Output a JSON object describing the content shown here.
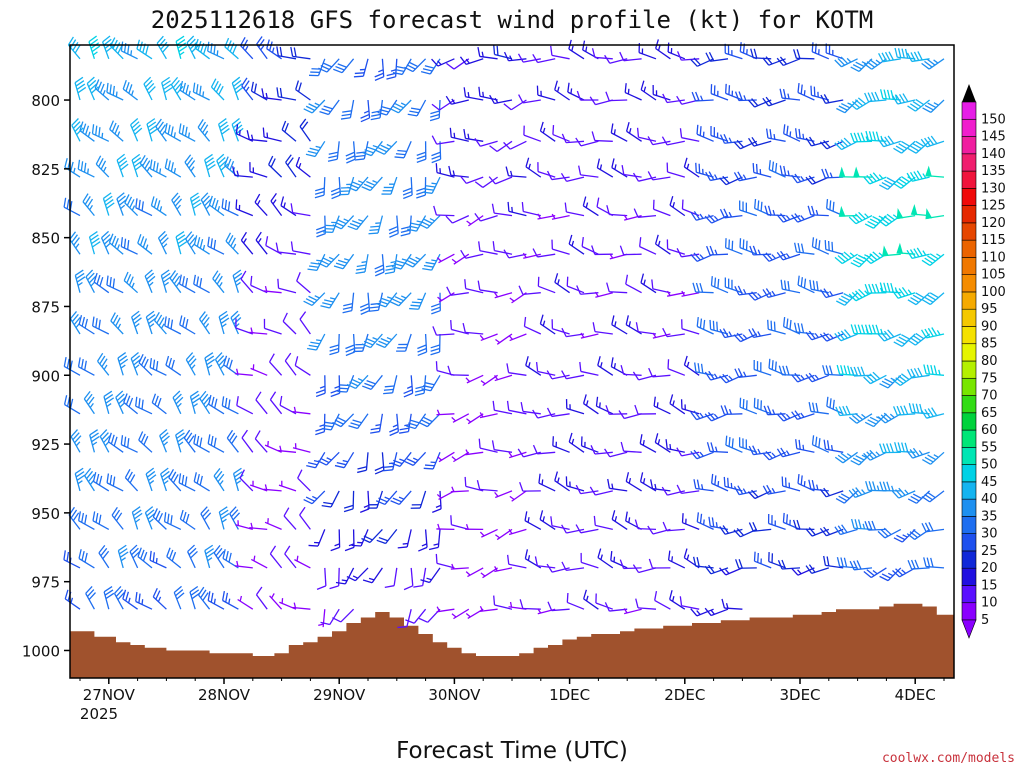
{
  "chart_data": {
    "type": "wind_barb_profile",
    "title": "2025112618 GFS forecast wind profile (kt) for KOTM",
    "xlabel": "Forecast Time (UTC)",
    "ylabel": "",
    "x_ticks": [
      "27NOV",
      "28NOV",
      "29NOV",
      "30NOV",
      "1DEC",
      "2DEC",
      "3DEC",
      "4DEC"
    ],
    "x_year": "2025",
    "ylim": [
      1010,
      780
    ],
    "y_ticks": [
      800,
      825,
      850,
      875,
      900,
      925,
      950,
      975,
      1000
    ],
    "time_range_hours": [
      0,
      180
    ],
    "time_step_hours": 3,
    "levels_hPa": [
      785,
      800,
      815,
      828,
      842,
      856,
      870,
      885,
      900,
      914,
      928,
      942,
      956,
      970,
      985
    ],
    "surface_pressure": {
      "hours": [
        0,
        6,
        9,
        12,
        15,
        21,
        24,
        30,
        33,
        39,
        42,
        45,
        48,
        51,
        54,
        57,
        60,
        63,
        66,
        69,
        72,
        75,
        78,
        81,
        84,
        87,
        90,
        93,
        96,
        99,
        102,
        105,
        108,
        111,
        114,
        117,
        120,
        123,
        126,
        129,
        132,
        135,
        138,
        141,
        144,
        147,
        150,
        153,
        156,
        159,
        162,
        165,
        168,
        171,
        174,
        177,
        180
      ],
      "pressure": [
        993,
        995,
        997,
        998,
        999,
        1000,
        1000,
        1001,
        1001,
        1002,
        1001,
        998,
        997,
        995,
        993,
        990,
        988,
        986,
        988,
        991,
        994,
        997,
        999,
        1001,
        1002,
        1002,
        1002,
        1001,
        999,
        998,
        996,
        995,
        994,
        994,
        993,
        992,
        992,
        991,
        991,
        990,
        990,
        989,
        989,
        988,
        988,
        988,
        987,
        987,
        986,
        985,
        985,
        985,
        984,
        983,
        983,
        984,
        987
      ]
    },
    "speed_periods": [
      {
        "start_h": 0,
        "end_h": 36,
        "speed_kt": [
          40,
          38,
          37,
          36,
          35,
          35,
          34,
          34,
          33,
          33,
          32,
          32,
          31,
          30,
          28
        ],
        "dir_deg": 320
      },
      {
        "start_h": 36,
        "end_h": 51,
        "speed_kt": [
          22,
          20,
          18,
          16,
          14,
          12,
          10,
          9,
          8,
          8,
          7,
          7,
          6,
          6,
          5
        ],
        "dir_deg": 300
      },
      {
        "start_h": 51,
        "end_h": 78,
        "speed_kt": [
          28,
          30,
          32,
          33,
          34,
          34,
          33,
          32,
          30,
          27,
          24,
          20,
          16,
          12,
          9
        ],
        "dir_deg": 200
      },
      {
        "start_h": 78,
        "end_h": 96,
        "speed_kt": [
          15,
          14,
          12,
          11,
          10,
          9,
          8,
          7,
          7,
          6,
          6,
          6,
          5,
          5,
          5
        ],
        "dir_deg": 260
      },
      {
        "start_h": 96,
        "end_h": 132,
        "speed_kt": [
          12,
          12,
          11,
          11,
          10,
          10,
          10,
          10,
          11,
          12,
          13,
          13,
          12,
          11,
          10
        ],
        "dir_deg": 280
      },
      {
        "start_h": 132,
        "end_h": 162,
        "speed_kt": [
          22,
          23,
          24,
          25,
          26,
          27,
          28,
          28,
          28,
          27,
          26,
          24,
          22,
          20,
          16
        ],
        "dir_deg": 270
      },
      {
        "start_h": 162,
        "end_h": 180,
        "speed_kt": [
          38,
          40,
          42,
          45,
          48,
          46,
          44,
          42,
          40,
          38,
          36,
          34,
          30,
          26,
          20
        ],
        "dir_deg": 250
      }
    ],
    "colorbar": {
      "labels": [
        "5",
        "10",
        "15",
        "20",
        "25",
        "30",
        "35",
        "40",
        "45",
        "50",
        "55",
        "60",
        "65",
        "70",
        "75",
        "80",
        "85",
        "90",
        "95",
        "100",
        "105",
        "110",
        "115",
        "120",
        "125",
        "130",
        "135",
        "140",
        "145",
        "150"
      ],
      "colors": [
        "#8a00ff",
        "#5a10ff",
        "#2010e0",
        "#1028d8",
        "#1e50ee",
        "#1e6ef0",
        "#1e90f0",
        "#14b4f0",
        "#00d2e6",
        "#00e6b4",
        "#00e678",
        "#00d23c",
        "#32dc14",
        "#78e600",
        "#b4f000",
        "#e6f500",
        "#f5e100",
        "#f5c800",
        "#f5aa00",
        "#f58c00",
        "#f07800",
        "#eb6400",
        "#e64600",
        "#e62800",
        "#f00a0a",
        "#f0143c",
        "#f01e6e",
        "#f01ea0",
        "#f01ecd",
        "#e61ee6"
      ]
    },
    "colors": {
      "terrain": "#a0522d",
      "source_text": "#c8323c"
    }
  },
  "footer": {
    "source": "coolwx.com/models"
  }
}
